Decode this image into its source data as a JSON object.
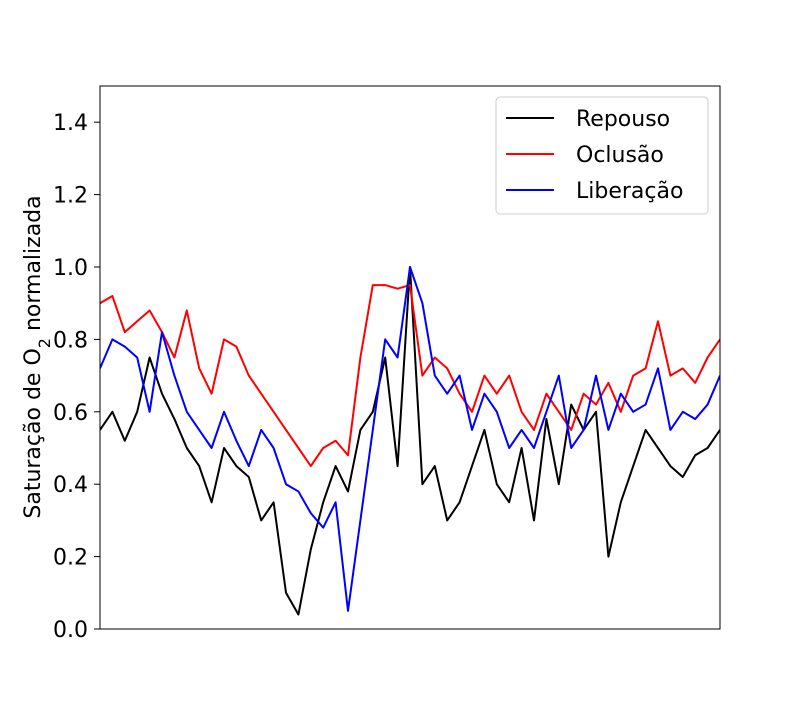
{
  "chart_data": {
    "type": "line",
    "title": "",
    "xlabel": "",
    "ylabel_main": "Saturação de O",
    "ylabel_sub": "2",
    "ylabel_rest": " normalizada",
    "ylim": [
      0,
      1.5
    ],
    "xlim": [
      0,
      1
    ],
    "yticks": [
      0.0,
      0.2,
      0.4,
      0.6,
      0.8,
      1.0,
      1.2,
      1.4
    ],
    "ytick_labels": [
      "0.0",
      "0.2",
      "0.4",
      "0.6",
      "0.8",
      "1.0",
      "1.2",
      "1.4"
    ],
    "x_ticks_shown": false,
    "grid": false,
    "legend_position": "top-right",
    "series_style": [
      {
        "name": "Repouso",
        "color": "#000000"
      },
      {
        "name": "Oclusão",
        "color": "#ff0000"
      },
      {
        "name": "Liberação",
        "color": "#0000ff"
      }
    ],
    "series": [
      {
        "name": "Repouso",
        "color": "#000000",
        "x": [
          0,
          0.02,
          0.04,
          0.06,
          0.08,
          0.1,
          0.12,
          0.14,
          0.16,
          0.18,
          0.2,
          0.22,
          0.24,
          0.26,
          0.28,
          0.3,
          0.32,
          0.34,
          0.36,
          0.38,
          0.4,
          0.42,
          0.44,
          0.46,
          0.48,
          0.5,
          0.52,
          0.54,
          0.56,
          0.58,
          0.6,
          0.62,
          0.64,
          0.66,
          0.68,
          0.7,
          0.72,
          0.74,
          0.76,
          0.78,
          0.8,
          0.82,
          0.84,
          0.86,
          0.88,
          0.9,
          0.92,
          0.94,
          0.96,
          0.98,
          1.0
        ],
        "values": [
          0.55,
          0.6,
          0.52,
          0.6,
          0.75,
          0.65,
          0.58,
          0.5,
          0.45,
          0.35,
          0.5,
          0.45,
          0.42,
          0.3,
          0.35,
          0.1,
          0.04,
          0.22,
          0.35,
          0.45,
          0.38,
          0.55,
          0.6,
          0.75,
          0.45,
          1.0,
          0.4,
          0.45,
          0.3,
          0.35,
          0.45,
          0.55,
          0.4,
          0.35,
          0.5,
          0.3,
          0.58,
          0.4,
          0.62,
          0.55,
          0.6,
          0.2,
          0.35,
          0.45,
          0.55,
          0.5,
          0.45,
          0.42,
          0.48,
          0.5,
          0.55
        ]
      },
      {
        "name": "Oclusão",
        "color": "#ff0000",
        "x": [
          0,
          0.02,
          0.04,
          0.06,
          0.08,
          0.1,
          0.12,
          0.14,
          0.16,
          0.18,
          0.2,
          0.22,
          0.24,
          0.26,
          0.28,
          0.3,
          0.32,
          0.34,
          0.36,
          0.38,
          0.4,
          0.42,
          0.44,
          0.46,
          0.48,
          0.5,
          0.52,
          0.54,
          0.56,
          0.58,
          0.6,
          0.62,
          0.64,
          0.66,
          0.68,
          0.7,
          0.72,
          0.74,
          0.76,
          0.78,
          0.8,
          0.82,
          0.84,
          0.86,
          0.88,
          0.9,
          0.92,
          0.94,
          0.96,
          0.98,
          1.0
        ],
        "values": [
          0.9,
          0.92,
          0.82,
          0.85,
          0.88,
          0.82,
          0.75,
          0.88,
          0.72,
          0.65,
          0.8,
          0.78,
          0.7,
          0.65,
          0.6,
          0.55,
          0.5,
          0.45,
          0.5,
          0.52,
          0.48,
          0.75,
          0.95,
          0.95,
          0.94,
          0.95,
          0.7,
          0.75,
          0.72,
          0.65,
          0.6,
          0.7,
          0.65,
          0.7,
          0.6,
          0.55,
          0.65,
          0.6,
          0.55,
          0.65,
          0.62,
          0.68,
          0.6,
          0.7,
          0.72,
          0.85,
          0.7,
          0.72,
          0.68,
          0.75,
          0.8
        ]
      },
      {
        "name": "Liberação",
        "color": "#0000ff",
        "x": [
          0,
          0.02,
          0.04,
          0.06,
          0.08,
          0.1,
          0.12,
          0.14,
          0.16,
          0.18,
          0.2,
          0.22,
          0.24,
          0.26,
          0.28,
          0.3,
          0.32,
          0.34,
          0.36,
          0.38,
          0.4,
          0.42,
          0.44,
          0.46,
          0.48,
          0.5,
          0.52,
          0.54,
          0.56,
          0.58,
          0.6,
          0.62,
          0.64,
          0.66,
          0.68,
          0.7,
          0.72,
          0.74,
          0.76,
          0.78,
          0.8,
          0.82,
          0.84,
          0.86,
          0.88,
          0.9,
          0.92,
          0.94,
          0.96,
          0.98,
          1.0
        ],
        "values": [
          0.72,
          0.8,
          0.78,
          0.75,
          0.6,
          0.82,
          0.7,
          0.6,
          0.55,
          0.5,
          0.6,
          0.52,
          0.45,
          0.55,
          0.5,
          0.4,
          0.38,
          0.32,
          0.28,
          0.35,
          0.05,
          0.3,
          0.55,
          0.8,
          0.75,
          1.0,
          0.9,
          0.7,
          0.65,
          0.7,
          0.55,
          0.65,
          0.6,
          0.5,
          0.55,
          0.5,
          0.6,
          0.7,
          0.5,
          0.55,
          0.7,
          0.55,
          0.65,
          0.6,
          0.62,
          0.72,
          0.55,
          0.6,
          0.58,
          0.62,
          0.7
        ]
      }
    ]
  }
}
